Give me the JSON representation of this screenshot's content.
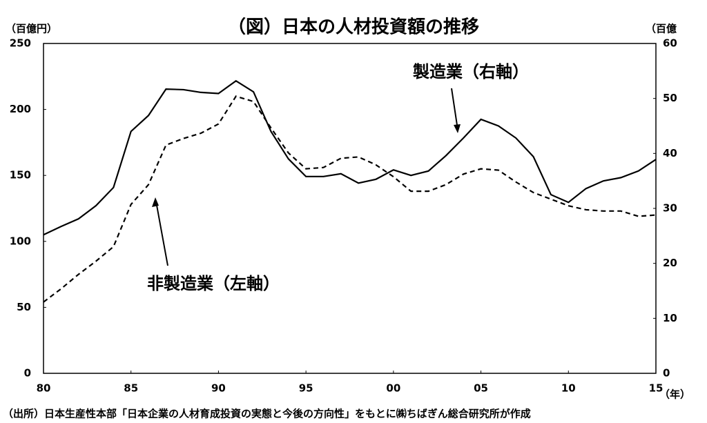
{
  "chart_data": {
    "type": "line",
    "title": "（図）日本の人材投資額の推移",
    "y_axis_label": "（百億円）",
    "y2_axis_label": "（百億",
    "x_axis_label": "（年）",
    "source": "（出所）日本生産性本部「日本企業の人材育成投資の実態と今後の方向性」をもとに㈱ちばぎん総合研究所が作成",
    "x": [
      1980,
      1981,
      1982,
      1983,
      1984,
      1985,
      1986,
      1987,
      1988,
      1989,
      1990,
      1991,
      1992,
      1993,
      1994,
      1995,
      1996,
      1997,
      1998,
      1999,
      2000,
      2001,
      2002,
      2003,
      2004,
      2005,
      2006,
      2007,
      2008,
      2009,
      2010,
      2011,
      2012,
      2013,
      2014,
      2015
    ],
    "series": [
      {
        "name": "製造業（右軸）",
        "color": "#000000",
        "line_style": "solid",
        "axis": "y2",
        "values": [
          25.2,
          26.7,
          28.1,
          30.5,
          33.8,
          44.0,
          46.9,
          51.7,
          51.6,
          51.1,
          50.9,
          53.2,
          51.2,
          44.0,
          39.0,
          35.8,
          35.8,
          36.3,
          34.6,
          35.3,
          37.0,
          36.0,
          36.8,
          39.6,
          42.8,
          46.2,
          45.0,
          42.8,
          39.4,
          32.5,
          31.1,
          33.6,
          35.0,
          35.6,
          36.8,
          38.9
        ]
      },
      {
        "name": "非製造業（左軸）",
        "color": "#000000",
        "line_style": "dashed",
        "values": [
          54,
          64,
          75,
          85,
          96,
          128,
          143,
          173,
          178,
          182,
          189,
          210,
          206,
          186,
          167,
          155,
          156,
          163,
          164,
          158,
          149,
          138,
          138,
          143,
          151,
          155,
          154,
          145,
          137,
          132,
          127,
          124,
          123,
          123,
          119,
          120
        ]
      }
    ],
    "xlim": [
      1980,
      2015
    ],
    "xticks": [
      {
        "value": 1980,
        "label": "80"
      },
      {
        "value": 1985,
        "label": "85"
      },
      {
        "value": 1990,
        "label": "90"
      },
      {
        "value": 1995,
        "label": "95"
      },
      {
        "value": 2000,
        "label": "00"
      },
      {
        "value": 2005,
        "label": "05"
      },
      {
        "value": 2010,
        "label": "10"
      },
      {
        "value": 2015,
        "label": "15"
      }
    ],
    "ylim": [
      0,
      250
    ],
    "yticks": [
      0,
      50,
      100,
      150,
      200,
      250
    ],
    "y2lim": [
      0,
      60
    ],
    "y2ticks": [
      0,
      10,
      20,
      30,
      40,
      50,
      60
    ],
    "grid": false
  }
}
